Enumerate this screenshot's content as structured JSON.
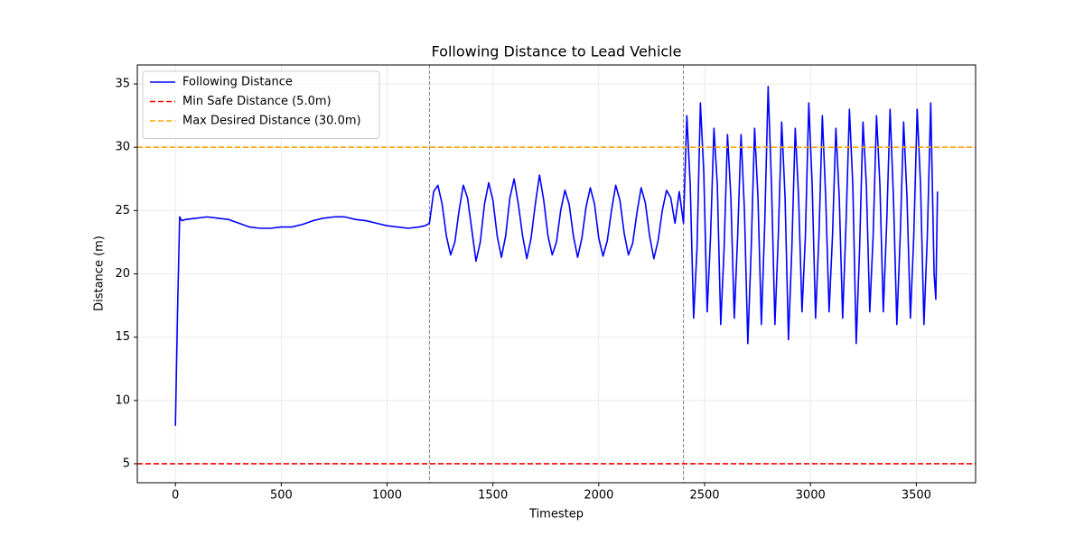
{
  "chart_data": {
    "type": "line",
    "title": "Following Distance to Lead Vehicle",
    "xlabel": "Timestep",
    "ylabel": "Distance (m)",
    "x": [
      0,
      10,
      20,
      30,
      50,
      100,
      150,
      200,
      250,
      300,
      350,
      400,
      450,
      500,
      550,
      600,
      650,
      700,
      750,
      800,
      850,
      900,
      950,
      1000,
      1050,
      1100,
      1150,
      1180,
      1200,
      1220,
      1240,
      1260,
      1280,
      1300,
      1320,
      1340,
      1360,
      1380,
      1400,
      1420,
      1440,
      1460,
      1480,
      1500,
      1520,
      1540,
      1560,
      1580,
      1600,
      1620,
      1640,
      1660,
      1680,
      1700,
      1720,
      1740,
      1760,
      1780,
      1800,
      1820,
      1840,
      1860,
      1880,
      1900,
      1920,
      1940,
      1960,
      1980,
      2000,
      2020,
      2040,
      2060,
      2080,
      2100,
      2120,
      2140,
      2160,
      2180,
      2200,
      2220,
      2240,
      2260,
      2280,
      2300,
      2320,
      2340,
      2360,
      2380,
      2400,
      2416,
      2432,
      2448,
      2464,
      2480,
      2496,
      2512,
      2528,
      2544,
      2560,
      2576,
      2592,
      2608,
      2624,
      2640,
      2656,
      2672,
      2688,
      2704,
      2720,
      2736,
      2752,
      2768,
      2784,
      2800,
      2816,
      2832,
      2848,
      2864,
      2880,
      2896,
      2912,
      2928,
      2944,
      2960,
      2976,
      2992,
      3008,
      3024,
      3040,
      3056,
      3072,
      3088,
      3104,
      3120,
      3136,
      3152,
      3168,
      3184,
      3200,
      3216,
      3232,
      3248,
      3264,
      3280,
      3296,
      3312,
      3328,
      3344,
      3360,
      3376,
      3392,
      3408,
      3424,
      3440,
      3456,
      3472,
      3488,
      3504,
      3520,
      3536,
      3552,
      3568,
      3584,
      3592,
      3600
    ],
    "series": [
      {
        "name": "Following Distance",
        "color": "#0000ff",
        "values": [
          8,
          17,
          24.5,
          24.2,
          24.3,
          24.4,
          24.5,
          24.4,
          24.3,
          24.0,
          23.7,
          23.6,
          23.6,
          23.7,
          23.7,
          23.9,
          24.2,
          24.4,
          24.5,
          24.5,
          24.3,
          24.2,
          24.0,
          23.8,
          23.7,
          23.6,
          23.7,
          23.8,
          24,
          26.5,
          27,
          25.5,
          23,
          21.5,
          22.5,
          25,
          27,
          26,
          23.5,
          21,
          22.5,
          25.5,
          27.2,
          25.8,
          23,
          21.3,
          23,
          26,
          27.5,
          25.5,
          23,
          21.2,
          22.8,
          25.5,
          27.8,
          25.8,
          23,
          21.5,
          22.5,
          25,
          26.6,
          25.5,
          23,
          21.3,
          22.8,
          25.3,
          26.8,
          25.5,
          22.8,
          21.4,
          22.6,
          25,
          27,
          25.8,
          23.2,
          21.5,
          22.4,
          24.8,
          26.8,
          25.6,
          23,
          21.2,
          22.6,
          25,
          26.6,
          26,
          24,
          26.5,
          24,
          32.5,
          27,
          16.5,
          22,
          33.5,
          28,
          17,
          23,
          31.5,
          27,
          16,
          22,
          31,
          26,
          16.5,
          23,
          31,
          25,
          14.5,
          22,
          31.5,
          26,
          16,
          24,
          34.8,
          27,
          16,
          23,
          32,
          26,
          14.8,
          22,
          31.5,
          26,
          17,
          23,
          33.5,
          27,
          16.5,
          23,
          32.5,
          26,
          17,
          23,
          31.5,
          26,
          16.5,
          24,
          33,
          27,
          14.5,
          22,
          32,
          27,
          17,
          23,
          32.5,
          27,
          17,
          24,
          33,
          26,
          16,
          23,
          32,
          26,
          16.5,
          23,
          33,
          27,
          16,
          23,
          33.5,
          20,
          18,
          26.5
        ]
      }
    ],
    "hlines": [
      {
        "name": "Min Safe Distance (5.0m)",
        "color": "#ff0000",
        "value": 5
      },
      {
        "name": "Max Desired Distance (30.0m)",
        "color": "#ffa500",
        "value": 30
      }
    ],
    "vlines": [
      {
        "value": 1200,
        "color": "#808080"
      },
      {
        "value": 2400,
        "color": "#808080"
      }
    ],
    "xlim": [
      -180,
      3780
    ],
    "ylim": [
      3.5,
      36.5
    ],
    "xticks": [
      0,
      500,
      1000,
      1500,
      2000,
      2500,
      3000,
      3500
    ],
    "yticks": [
      5,
      10,
      15,
      20,
      25,
      30,
      35
    ],
    "grid": true,
    "legend": "upper-left"
  }
}
